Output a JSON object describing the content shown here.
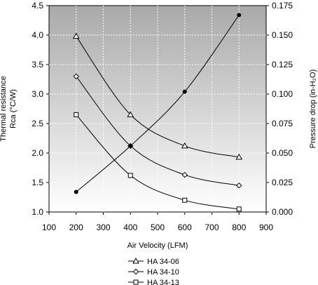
{
  "chart_data": {
    "type": "line",
    "xlabel": "Air Velocity (LFM)",
    "ylabel_left": [
      "Thermal resistance",
      "Rca (°C/W)"
    ],
    "ylabel_right": "Pressure drop (in-H₂O)",
    "xlim": [
      100,
      900
    ],
    "x_ticks": [
      "100",
      "200",
      "300",
      "400",
      "500",
      "600",
      "700",
      "800",
      "900"
    ],
    "ylim_left": [
      1.0,
      4.5
    ],
    "y_left_ticks": [
      "1.0",
      "1.5",
      "2.0",
      "2.5",
      "3.0",
      "3.5",
      "4.0",
      "4.5"
    ],
    "ylim_right": [
      0.0,
      0.175
    ],
    "y_right_ticks": [
      "0.000",
      "0.025",
      "0.050",
      "0.075",
      "0.100",
      "0.125",
      "0.150",
      "0.175"
    ],
    "grid": true,
    "legend_position": "bottom",
    "series": [
      {
        "name": "HA 34-06",
        "marker": "triangle",
        "axis": "left",
        "x": [
          200,
          400,
          600,
          800
        ],
        "y": [
          3.98,
          2.65,
          2.12,
          1.93
        ]
      },
      {
        "name": "HA 34-10",
        "marker": "diamond",
        "axis": "left",
        "x": [
          200,
          400,
          600,
          800
        ],
        "y": [
          3.3,
          2.12,
          1.63,
          1.45
        ]
      },
      {
        "name": "HA 34-13",
        "marker": "square",
        "axis": "left",
        "x": [
          200,
          400,
          600,
          800
        ],
        "y": [
          2.65,
          1.62,
          1.2,
          1.05
        ]
      },
      {
        "marker": "dot",
        "axis": "right",
        "x": [
          200,
          400,
          600,
          800
        ],
        "y": [
          0.017,
          0.056,
          0.102,
          0.167
        ]
      }
    ]
  }
}
